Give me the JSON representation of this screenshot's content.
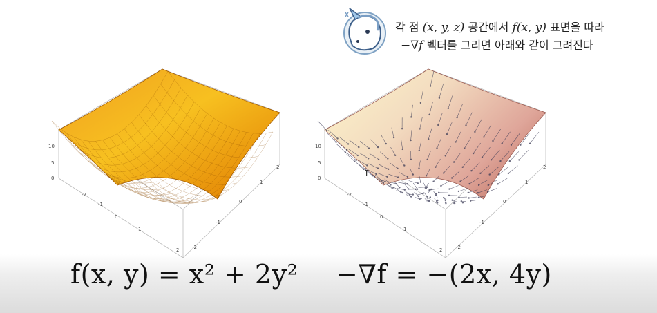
{
  "annotation": {
    "line1_prefix": "각 점 ",
    "line1_math1": "(x, y, z)",
    "line1_mid": " 공간에서 ",
    "line1_math2": "f(x, y)",
    "line1_suffix": " 표면을 따라",
    "line2_math": "−∇f",
    "line2_text": " 벡터를 그리면 아래와 같이 그려진다",
    "mascot_icon": "unicorn-mascot-icon"
  },
  "left_plot": {
    "function": "f(x, y) = x^2 + 2y^2",
    "z_ticks": [
      "10",
      "5",
      "0"
    ],
    "x_ticks": [
      "-2",
      "-1",
      "0",
      "1",
      "2"
    ],
    "y_ticks": [
      "-2",
      "-1",
      "0",
      "1",
      "2"
    ],
    "surface_color": "#f5a000"
  },
  "right_plot": {
    "function": "-∇f = -(2x, 4y)",
    "z_ticks": [
      "10",
      "5",
      "0"
    ],
    "x_ticks": [
      "-2",
      "-1",
      "0",
      "1",
      "2"
    ],
    "y_ticks": [
      "-2",
      "-1",
      "0",
      "1",
      "2"
    ],
    "surface_color_light": "#f7e7b8",
    "surface_color_dark": "#c97b6e"
  },
  "formulas": {
    "left": "f(x, y) = x² + 2y²",
    "right": "−∇f = −(2x, 4y)"
  }
}
